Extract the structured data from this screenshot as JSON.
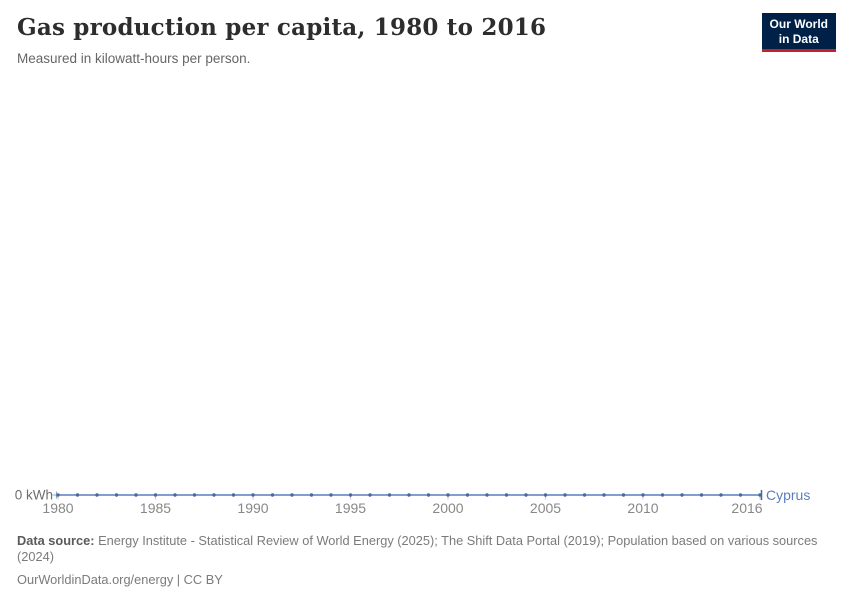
{
  "header": {
    "title": "Gas production per capita, 1980 to 2016",
    "subtitle": "Measured in kilowatt-hours per person."
  },
  "logo": {
    "line1": "Our World",
    "line2": "in Data",
    "background_color": "#002147",
    "accent_color": "#c0232c"
  },
  "chart_data": {
    "type": "line",
    "title": "Gas production per capita, 1980 to 2016",
    "subtitle": "Measured in kilowatt-hours per person.",
    "x": [
      1980,
      1981,
      1982,
      1983,
      1984,
      1985,
      1986,
      1987,
      1988,
      1989,
      1990,
      1991,
      1992,
      1993,
      1994,
      1995,
      1996,
      1997,
      1998,
      1999,
      2000,
      2001,
      2002,
      2003,
      2004,
      2005,
      2006,
      2007,
      2008,
      2009,
      2010,
      2011,
      2012,
      2013,
      2014,
      2015,
      2016
    ],
    "series": [
      {
        "name": "Cyprus",
        "color": "#5b7fbb",
        "dot_color": "#46699f",
        "values": [
          0,
          0,
          0,
          0,
          0,
          0,
          0,
          0,
          0,
          0,
          0,
          0,
          0,
          0,
          0,
          0,
          0,
          0,
          0,
          0,
          0,
          0,
          0,
          0,
          0,
          0,
          0,
          0,
          0,
          0,
          0,
          0,
          0,
          0,
          0,
          0,
          0
        ]
      }
    ],
    "x_ticks": [
      1980,
      1985,
      1990,
      1995,
      2000,
      2005,
      2010,
      2016
    ],
    "y_ticks": [
      {
        "value": 0,
        "label": "0 kWh"
      }
    ],
    "xlim": [
      1980,
      2016
    ],
    "ylim": [
      0,
      0
    ],
    "grid": false,
    "legend_position": "end-of-line",
    "axis_text_color": "#888888",
    "y_label_color": "#6d6d6d",
    "tick_color": "#c9c9c9"
  },
  "footer": {
    "source_label": "Data source:",
    "source_text": "Energy Institute - Statistical Review of World Energy (2025); The Shift Data Portal (2019); Population based on various sources (2024)",
    "link_label": "OurWorldinData.org/energy",
    "license_suffix": " | CC BY"
  }
}
